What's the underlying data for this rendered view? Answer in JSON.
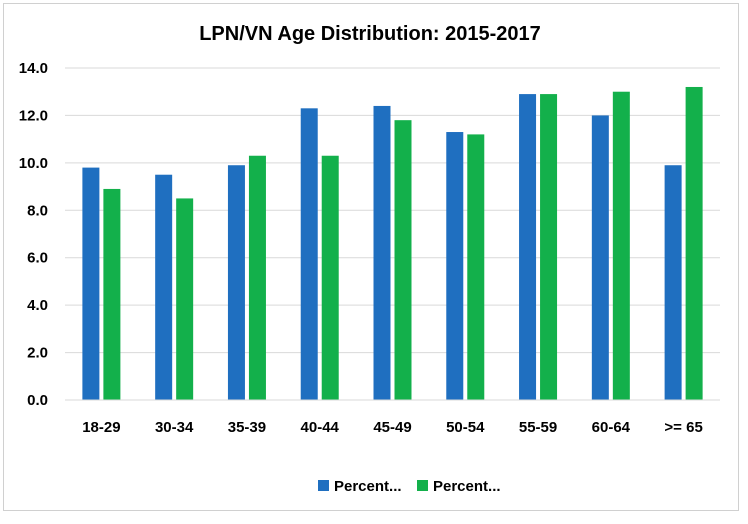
{
  "chart_data": {
    "type": "bar",
    "title": "LPN/VN Age Distribution: 2015-2017",
    "categories": [
      "18-29",
      "30-34",
      "35-39",
      "40-44",
      "45-49",
      "50-54",
      "55-59",
      "60-64",
      ">= 65"
    ],
    "series": [
      {
        "name": "Percent...",
        "color": "#1f6fc0",
        "values": [
          9.8,
          9.5,
          9.9,
          12.3,
          12.4,
          11.3,
          12.9,
          12.0,
          9.9
        ]
      },
      {
        "name": "Percent...",
        "color": "#13b04b",
        "values": [
          8.9,
          8.5,
          10.3,
          10.3,
          11.8,
          11.2,
          12.9,
          13.0,
          13.2
        ]
      }
    ],
    "ylim": [
      0,
      14
    ],
    "yticks": [
      0.0,
      2.0,
      4.0,
      6.0,
      8.0,
      10.0,
      12.0,
      14.0
    ],
    "ytick_labels": [
      "0.0",
      "2.0",
      "4.0",
      "6.0",
      "8.0",
      "10.0",
      "12.0",
      "14.0"
    ],
    "grid": true,
    "legend_position": "bottom",
    "xlabel": "",
    "ylabel": ""
  }
}
